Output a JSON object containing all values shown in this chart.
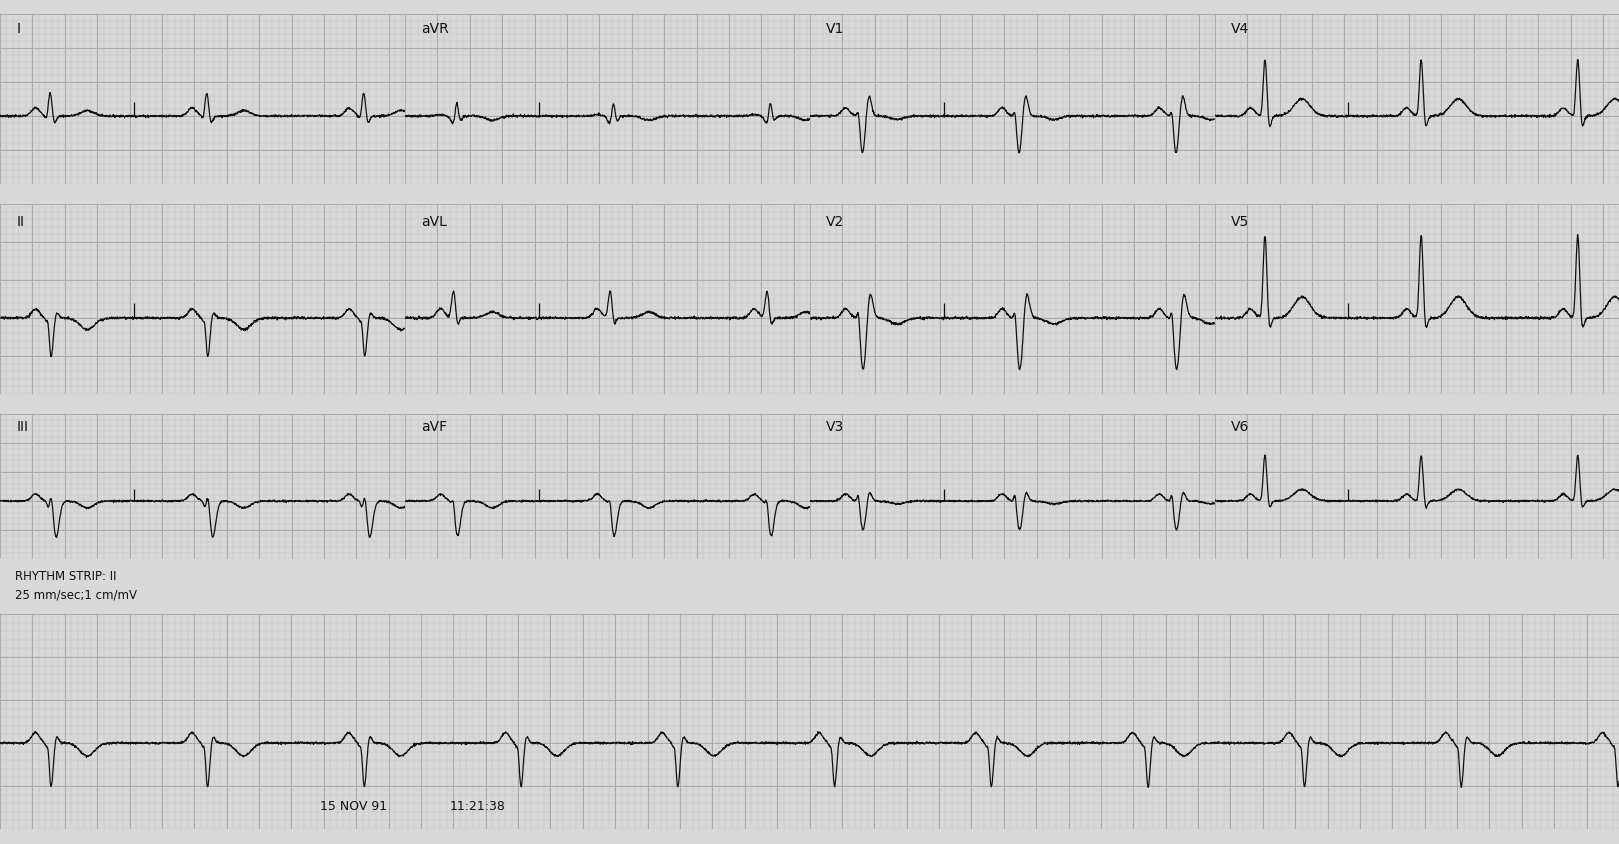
{
  "paper_color": "#d8d8d8",
  "grid_minor_color": "#c0c0c0",
  "grid_major_color": "#aaaaaa",
  "ecg_color": "#111111",
  "text_color": "#111111",
  "lead_labels_row0": [
    "I",
    "aVR",
    "V1",
    "V4"
  ],
  "lead_labels_row1": [
    "II",
    "aVL",
    "V2",
    "V5"
  ],
  "lead_labels_row2": [
    "III",
    "aVF",
    "V3",
    "V6"
  ],
  "date_text": "15 NOV 91",
  "time_text": "11:21:38",
  "rhythm_line1": "RHYTHM STRIP: II",
  "rhythm_line2": "25 mm/sec;1 cm/mV",
  "figure_width": 16.19,
  "figure_height": 8.45,
  "dpi": 100,
  "hr": 62,
  "minor_per_major": 5
}
